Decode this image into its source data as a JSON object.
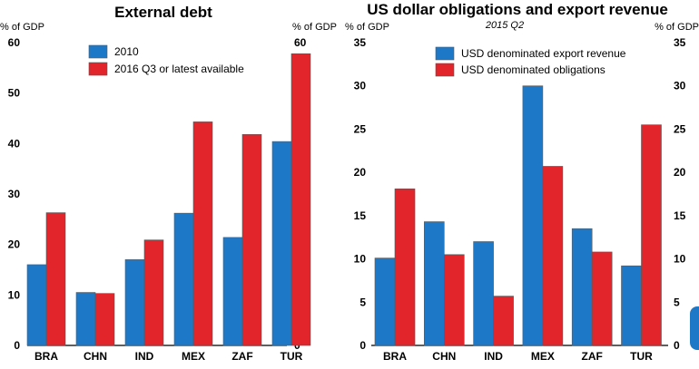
{
  "chart_data": [
    {
      "type": "bar",
      "title": "External debt",
      "subtitle": "",
      "unit_left": "% of GDP",
      "unit_right": "% of GDP",
      "categories": [
        "BRA",
        "CHN",
        "IND",
        "MEX",
        "ZAF",
        "TUR"
      ],
      "series": [
        {
          "name": "2010",
          "color": "#1e78c8",
          "values": [
            16,
            10.5,
            17,
            26.2,
            21.4,
            40.4
          ]
        },
        {
          "name": "2016 Q3 or latest available",
          "color": "#e2242b",
          "values": [
            26.3,
            10.3,
            20.9,
            44.3,
            41.8,
            57.8
          ]
        }
      ],
      "ylim": [
        0,
        60
      ],
      "yticks": [
        0,
        10,
        20,
        30,
        40,
        50,
        60
      ],
      "legend": "top-left",
      "grid": false
    },
    {
      "type": "bar",
      "title": "US dollar obligations and export revenue",
      "subtitle": "2015 Q2",
      "unit_left": "% of GDP",
      "unit_right": "% of GDP",
      "categories": [
        "BRA",
        "CHN",
        "IND",
        "MEX",
        "ZAF",
        "TUR"
      ],
      "series": [
        {
          "name": "USD denominated export revenue",
          "color": "#1e78c8",
          "values": [
            10.1,
            14.3,
            12,
            30,
            13.5,
            9.2
          ]
        },
        {
          "name": "USD denominated obligations",
          "color": "#e2242b",
          "values": [
            18.1,
            10.5,
            5.7,
            20.7,
            10.8,
            25.5
          ]
        }
      ],
      "ylim": [
        0,
        35
      ],
      "yticks": [
        0,
        5,
        10,
        15,
        20,
        25,
        30,
        35
      ],
      "legend": "top-center",
      "grid": false
    }
  ]
}
